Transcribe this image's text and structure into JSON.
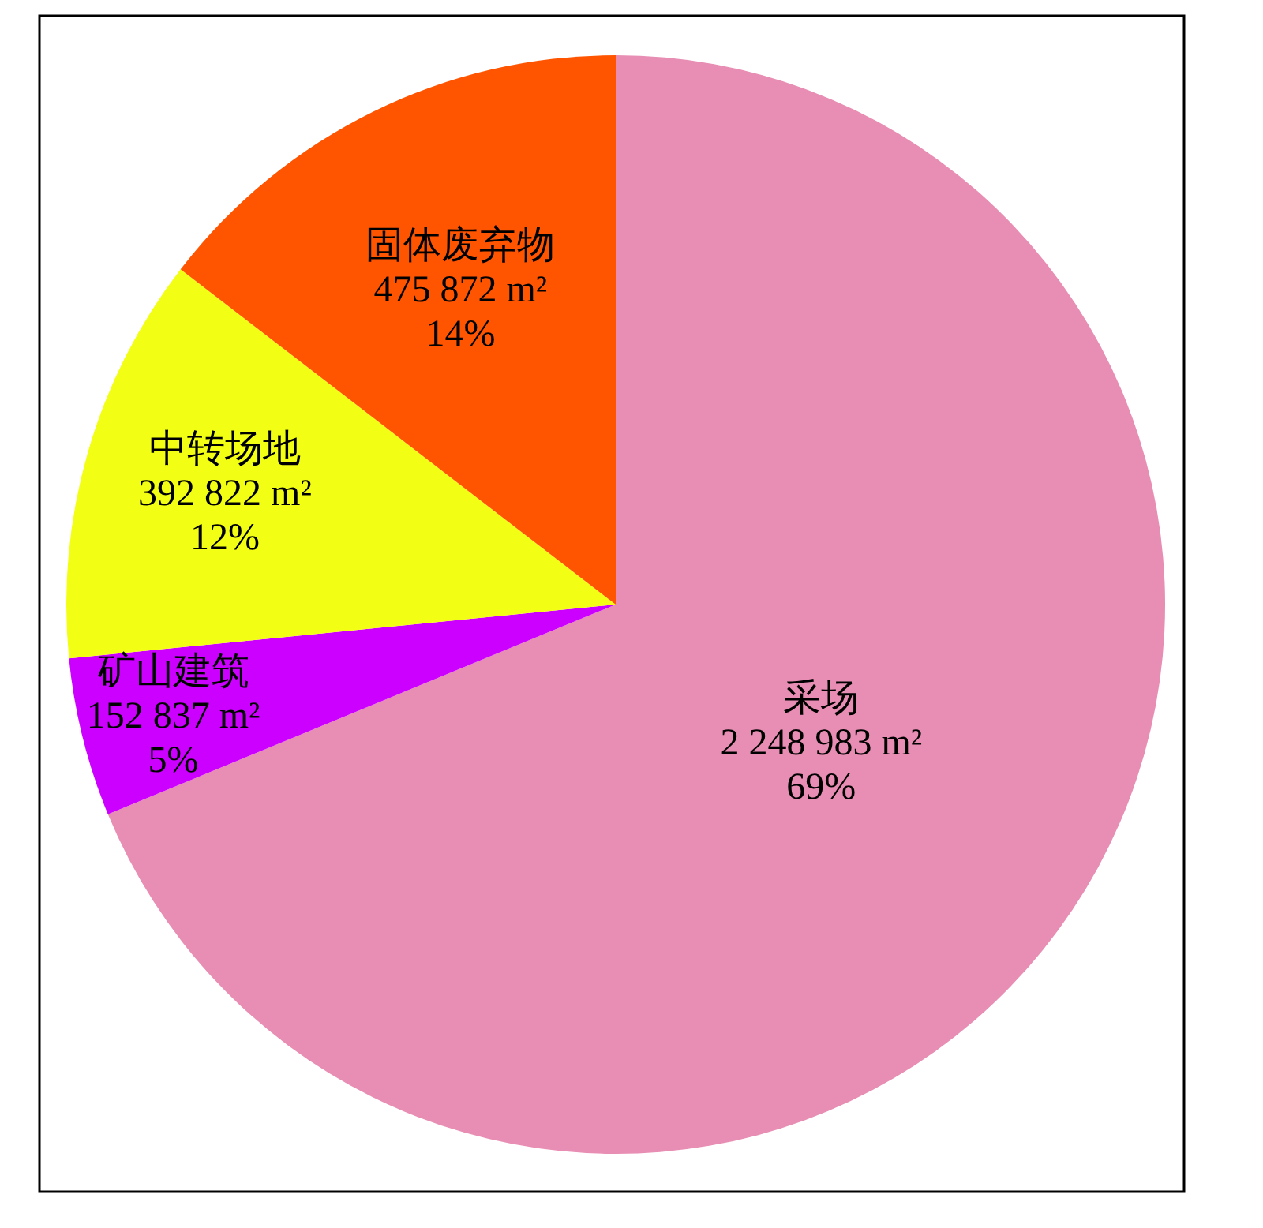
{
  "chart_data": {
    "type": "pie",
    "categories": [
      "采场",
      "矿山建筑",
      "中转场地",
      "固体废弃物"
    ],
    "values": [
      2248983,
      152837,
      392822,
      475872
    ],
    "value_labels": [
      "2 248 983 m²\n69%",
      "152 837 m²\n5%",
      "392 822 m²\n12%",
      "475 872 m²\n14%"
    ],
    "colors": [
      "#e88db3",
      "#cc00ff",
      "#f2ff14",
      "#ff5500"
    ],
    "legend": false
  }
}
